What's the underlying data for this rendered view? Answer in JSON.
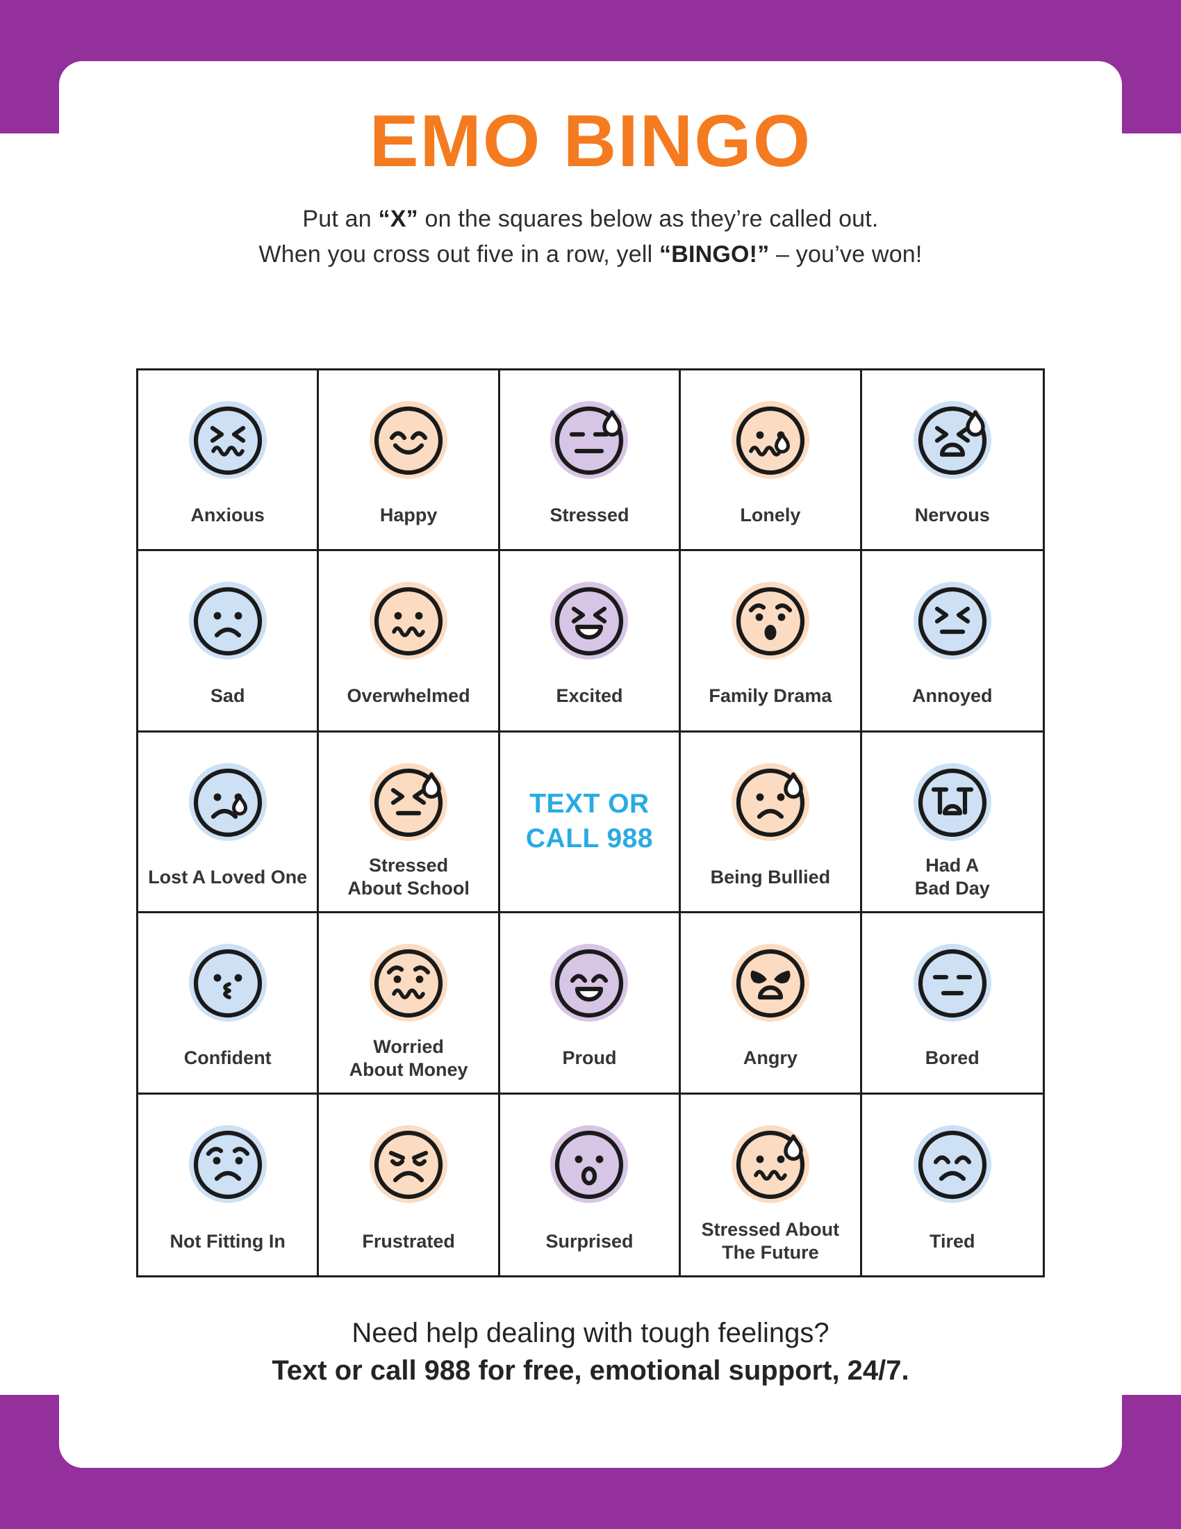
{
  "palette": {
    "frame": "#93309B",
    "title_orange": "#F47B20",
    "hotline_blue": "#29ABE2",
    "ink": "#1A1A1A",
    "pastel_blue": "#CDE0F4",
    "pastel_peach": "#FBDCC2",
    "pastel_lavender": "#D7C5E5"
  },
  "header": {
    "title": "EMO BINGO",
    "instructions": [
      [
        {
          "t": "Put an "
        },
        {
          "t": "“X”",
          "b": true
        },
        {
          "t": " on the squares below as they’re called out."
        }
      ],
      [
        {
          "t": "When you cross out five in a row, yell "
        },
        {
          "t": "“BINGO!”",
          "b": true
        },
        {
          "t": " – you’ve won!"
        }
      ]
    ]
  },
  "grid": {
    "cells": [
      {
        "label": "Anxious",
        "bg": "blue",
        "eyes": "squint",
        "mouth": "squiggle"
      },
      {
        "label": "Happy",
        "bg": "peach",
        "eyes": "arcup",
        "mouth": "smile"
      },
      {
        "label": "Stressed",
        "bg": "lavender",
        "eyes": "dash",
        "mouth": "linelong",
        "drop": true
      },
      {
        "label": "Lonely",
        "bg": "peach",
        "eyes": "dots",
        "mouth": "squiggle",
        "mouth_dx": -7,
        "tear": true
      },
      {
        "label": "Nervous",
        "bg": "blue",
        "eyes": "squint",
        "mouth": "openfrown",
        "drop": true
      },
      {
        "label": "Sad",
        "bg": "blue",
        "eyes": "dots",
        "mouth": "frown"
      },
      {
        "label": "Overwhelmed",
        "bg": "peach",
        "eyes": "dots",
        "mouth": "squiggle"
      },
      {
        "label": "Excited",
        "bg": "lavender",
        "eyes": "squint",
        "mouth": "opensmile"
      },
      {
        "label": "Family Drama",
        "bg": "peach",
        "eyes": "worried",
        "mouth": "ovalfill"
      },
      {
        "label": "Annoyed",
        "bg": "blue",
        "eyes": "squint",
        "mouth": "linemed"
      },
      {
        "label": "Lost A Loved One",
        "bg": "blue",
        "eyes": "dots",
        "mouth": "frown",
        "mouth_dx": -5,
        "tear": true
      },
      {
        "label": "Stressed\nAbout School",
        "bg": "peach",
        "eyes": "squint",
        "mouth": "linemed",
        "drop": true
      },
      {
        "type": "text",
        "lines": [
          "TEXT OR",
          "CALL 988"
        ],
        "color": "#29ABE2"
      },
      {
        "label": "Being Bullied",
        "bg": "peach",
        "eyes": "dots",
        "mouth": "frown",
        "drop": true
      },
      {
        "label": "Had A\nBad Day",
        "bg": "blue",
        "eyes": "teyes",
        "mouth": "domesmall"
      },
      {
        "label": "Confident",
        "bg": "blue",
        "eyes": "dots",
        "mouth": "kiss"
      },
      {
        "label": "Worried\nAbout Money",
        "bg": "peach",
        "eyes": "worried",
        "mouth": "squiggle"
      },
      {
        "label": "Proud",
        "bg": "lavender",
        "eyes": "arcup",
        "mouth": "opensmile"
      },
      {
        "label": "Angry",
        "bg": "peach",
        "eyes": "angry",
        "mouth": "openfrown"
      },
      {
        "label": "Bored",
        "bg": "blue",
        "eyes": "dash",
        "mouth": "lineshort"
      },
      {
        "label": "Not Fitting In",
        "bg": "blue",
        "eyes": "worried",
        "mouth": "frown"
      },
      {
        "label": "Frustrated",
        "bg": "peach",
        "eyes": "frustrated",
        "mouth": "frowndeep"
      },
      {
        "label": "Surprised",
        "bg": "lavender",
        "eyes": "dots",
        "mouth": "omouth"
      },
      {
        "label": "Stressed About\nThe Future",
        "bg": "peach",
        "eyes": "dots",
        "mouth": "squiggle",
        "drop": true
      },
      {
        "label": "Tired",
        "bg": "blue",
        "eyes": "arcup",
        "mouth": "frown"
      }
    ]
  },
  "footer": {
    "question": "Need help dealing with tough feelings?",
    "hotline": "Text or call 988 for free, emotional support, 24/7."
  }
}
